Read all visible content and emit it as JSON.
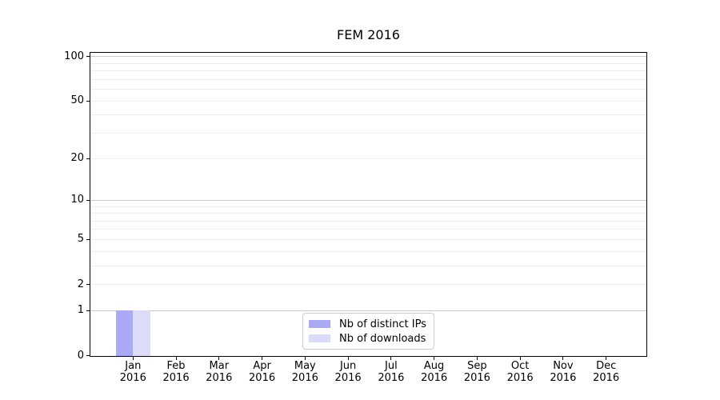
{
  "chart_data": {
    "type": "bar",
    "title": "FEM 2016",
    "categories": [
      [
        "Jan",
        "2016"
      ],
      [
        "Feb",
        "2016"
      ],
      [
        "Mar",
        "2016"
      ],
      [
        "Apr",
        "2016"
      ],
      [
        "May",
        "2016"
      ],
      [
        "Jun",
        "2016"
      ],
      [
        "Jul",
        "2016"
      ],
      [
        "Aug",
        "2016"
      ],
      [
        "Sep",
        "2016"
      ],
      [
        "Oct",
        "2016"
      ],
      [
        "Nov",
        "2016"
      ],
      [
        "Dec",
        "2016"
      ]
    ],
    "series": [
      {
        "name": "Nb of distinct IPs",
        "color": "#a9a9f5",
        "values": [
          1,
          0,
          0,
          0,
          0,
          0,
          0,
          0,
          0,
          0,
          0,
          0
        ]
      },
      {
        "name": "Nb of downloads",
        "color": "#dcdcf8",
        "values": [
          1,
          0,
          0,
          0,
          0,
          0,
          0,
          0,
          0,
          0,
          0,
          0
        ]
      }
    ],
    "y_scale": "log1p",
    "ylim": [
      0,
      107
    ],
    "yticks": [
      0,
      1,
      2,
      5,
      10,
      20,
      50,
      100
    ],
    "major_gridlines": [
      1,
      10,
      100
    ],
    "minor_gridlines": [
      2,
      3,
      4,
      5,
      6,
      7,
      8,
      9,
      20,
      30,
      40,
      50,
      60,
      70,
      80,
      90
    ],
    "grid": true,
    "legend_position": "lower center",
    "colors": {
      "grid_major": "#c9c9c9",
      "grid_minor": "#ededed",
      "spine": "#000000",
      "text": "#000000",
      "legend_border": "#cccccc"
    }
  }
}
